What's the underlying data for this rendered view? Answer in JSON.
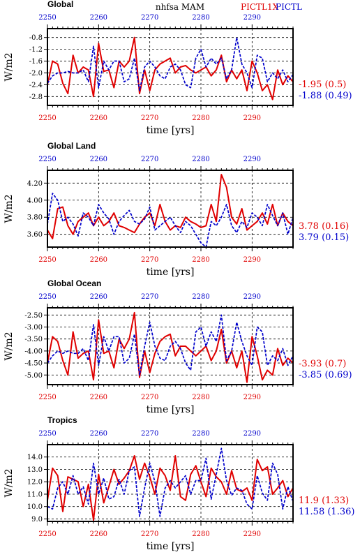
{
  "header": {
    "title": "nhfsa  MAM",
    "exp_label": "PICTL1X",
    "ctl_label": "PICTL"
  },
  "colors": {
    "exp": "#e00000",
    "ctl": "#0000cc"
  },
  "chart_data": [
    {
      "type": "line",
      "title": "Global",
      "xlabel": "time [yrs]",
      "ylabel": "W/m2",
      "xlim": [
        2250,
        2298
      ],
      "ylim": [
        -3.1,
        -0.5
      ],
      "yticks": [
        "-0.8",
        "-1.2",
        "-1.6",
        "-2.0",
        "-2.4",
        "-2.8"
      ],
      "xticks_top": [
        "2250",
        "2260",
        "2270",
        "2280",
        "2290"
      ],
      "xticks_bottom": [
        "2250",
        "2260",
        "2270",
        "2280",
        "2290"
      ],
      "series": [
        {
          "name": "PICTL1X",
          "color": "exp",
          "x_start": 2250,
          "stat": "-1.95 (0.5)",
          "values": [
            -2.4,
            -1.6,
            -1.7,
            -2.35,
            -2.7,
            -1.4,
            -2.0,
            -1.8,
            -1.9,
            -2.8,
            -1.0,
            -1.95,
            -1.9,
            -2.5,
            -1.6,
            -1.8,
            -1.6,
            -0.8,
            -2.7,
            -1.9,
            -2.6,
            -1.9,
            -1.7,
            -1.6,
            -1.5,
            -2.0,
            -1.8,
            -1.75,
            -1.9,
            -2.0,
            -1.9,
            -1.8,
            -2.1,
            -1.9,
            -1.4,
            -2.3,
            -1.9,
            -2.2,
            -1.9,
            -2.6,
            -1.6,
            -2.0,
            -2.6,
            -2.4,
            -2.9,
            -1.9,
            -2.4,
            -2.1,
            -2.3
          ]
        },
        {
          "name": "PICTL",
          "color": "ctl",
          "x_start": 2250,
          "stat": "-1.88 (0.49)",
          "values": [
            -2.35,
            -2.1,
            -2.0,
            -2.0,
            -1.95,
            -2.0,
            -2.0,
            -1.9,
            -2.3,
            -1.1,
            -2.5,
            -1.6,
            -1.9,
            -1.6,
            -1.6,
            -2.3,
            -2.2,
            -1.5,
            -2.6,
            -1.8,
            -1.6,
            -1.8,
            -2.1,
            -2.2,
            -1.8,
            -1.7,
            -1.9,
            -2.4,
            -2.5,
            -1.5,
            -1.2,
            -1.8,
            -1.5,
            -1.7,
            -1.5,
            -2.2,
            -1.9,
            -0.8,
            -1.7,
            -2.0,
            -2.5,
            -1.4,
            -1.5,
            -2.3,
            -2.0,
            -2.2,
            -1.9,
            -2.3,
            -2.05
          ]
        }
      ]
    },
    {
      "type": "line",
      "title": "Global Land",
      "xlabel": "time [yrs]",
      "ylabel": "W/m2",
      "xlim": [
        2250,
        2298
      ],
      "ylim": [
        3.45,
        4.35
      ],
      "yticks": [
        "4.20",
        "4.00",
        "3.80",
        "3.60"
      ],
      "xticks_top": [
        "2250",
        "2260",
        "2270",
        "2280",
        "2290"
      ],
      "xticks_bottom": [
        "2250",
        "2260",
        "2270",
        "2280",
        "2290"
      ],
      "series": [
        {
          "name": "PICTL1X",
          "color": "exp",
          "x_start": 2250,
          "stat": "3.78 (0.16)",
          "values": [
            3.65,
            3.55,
            3.9,
            3.92,
            3.7,
            3.6,
            3.75,
            3.8,
            3.85,
            3.7,
            3.8,
            3.7,
            3.75,
            3.85,
            3.7,
            3.68,
            3.65,
            3.62,
            3.72,
            3.8,
            3.85,
            3.7,
            3.95,
            3.75,
            3.65,
            3.7,
            3.68,
            3.8,
            3.75,
            3.72,
            3.68,
            3.7,
            3.95,
            3.75,
            4.3,
            4.15,
            3.8,
            3.72,
            3.9,
            3.65,
            3.7,
            3.75,
            3.85,
            3.72,
            3.95,
            3.7,
            3.85,
            3.75,
            3.7
          ]
        },
        {
          "name": "PICTL",
          "color": "ctl",
          "x_start": 2250,
          "stat": "3.79 (0.15)",
          "values": [
            3.72,
            4.08,
            4.0,
            3.75,
            3.8,
            3.72,
            3.58,
            3.85,
            3.8,
            3.7,
            3.95,
            3.85,
            3.78,
            3.6,
            3.75,
            3.82,
            3.88,
            3.75,
            3.72,
            3.78,
            3.92,
            3.65,
            3.7,
            3.75,
            3.8,
            3.7,
            3.62,
            3.75,
            3.7,
            3.6,
            3.5,
            3.45,
            3.75,
            3.7,
            3.8,
            3.95,
            3.7,
            3.62,
            3.75,
            3.68,
            3.85,
            3.8,
            3.7,
            3.95,
            3.82,
            3.7,
            3.85,
            3.6,
            3.8
          ]
        }
      ]
    },
    {
      "type": "line",
      "title": "Global Ocean",
      "xlabel": "time [yrs]",
      "ylabel": "W/m2",
      "xlim": [
        2250,
        2298
      ],
      "ylim": [
        -5.4,
        -2.2
      ],
      "yticks": [
        "-2.50",
        "-3.00",
        "-3.50",
        "-4.00",
        "-4.50",
        "-5.00"
      ],
      "xticks_top": [
        "2250",
        "2260",
        "2270",
        "2280",
        "2290"
      ],
      "xticks_bottom": [
        "2250",
        "2260",
        "2270",
        "2280",
        "2290"
      ],
      "series": [
        {
          "name": "PICTL1X",
          "color": "exp",
          "x_start": 2250,
          "stat": "-3.93 (0.7)",
          "values": [
            -4.5,
            -3.4,
            -3.6,
            -4.4,
            -5.0,
            -3.2,
            -4.3,
            -4.1,
            -4.0,
            -5.2,
            -2.7,
            -4.1,
            -4.0,
            -4.7,
            -3.5,
            -3.9,
            -3.5,
            -2.4,
            -5.1,
            -4.0,
            -4.9,
            -4.1,
            -3.6,
            -3.4,
            -3.3,
            -4.2,
            -3.8,
            -3.8,
            -4.0,
            -4.2,
            -4.0,
            -3.8,
            -4.4,
            -4.0,
            -3.1,
            -4.5,
            -4.0,
            -4.7,
            -4.0,
            -5.3,
            -3.4,
            -4.2,
            -5.2,
            -4.8,
            -5.0,
            -3.9,
            -4.6,
            -4.3,
            -4.5
          ]
        },
        {
          "name": "PICTL",
          "color": "ctl",
          "x_start": 2250,
          "stat": "-3.85 (0.69)",
          "values": [
            -4.5,
            -4.2,
            -4.0,
            -4.1,
            -4.0,
            -4.1,
            -4.1,
            -3.9,
            -4.4,
            -2.9,
            -4.6,
            -3.4,
            -4.0,
            -3.4,
            -3.4,
            -4.5,
            -4.3,
            -3.3,
            -5.0,
            -3.8,
            -2.8,
            -3.8,
            -4.3,
            -4.4,
            -3.8,
            -3.6,
            -3.9,
            -4.5,
            -4.8,
            -3.2,
            -3.0,
            -3.8,
            -3.2,
            -3.6,
            -2.5,
            -4.4,
            -4.0,
            -2.8,
            -3.6,
            -4.2,
            -4.6,
            -3.0,
            -3.2,
            -4.6,
            -4.2,
            -4.4,
            -3.9,
            -4.6,
            -4.2
          ]
        }
      ]
    },
    {
      "type": "line",
      "title": "Tropics",
      "xlabel": "time [yrs]",
      "ylabel": "W/m2",
      "xlim": [
        2250,
        2298
      ],
      "ylim": [
        8.8,
        15.0
      ],
      "yticks": [
        "14.0",
        "13.0",
        "12.0",
        "11.0",
        "10.0",
        "9.0"
      ],
      "xticks_top": [
        "2250",
        "2260",
        "2270",
        "2280",
        "2290"
      ],
      "xticks_bottom": [
        "2250",
        "2260",
        "2270",
        "2280",
        "2290"
      ],
      "series": [
        {
          "name": "PICTL1X",
          "color": "exp",
          "x_start": 2250,
          "stat": "11.9 (1.33)",
          "values": [
            10.5,
            13.1,
            12.5,
            9.6,
            12.4,
            12.2,
            12.0,
            10.0,
            11.8,
            8.9,
            12.6,
            10.3,
            11.6,
            13.0,
            11.8,
            12.3,
            12.9,
            14.1,
            12.2,
            13.5,
            12.4,
            11.0,
            13.1,
            12.5,
            11.3,
            14.1,
            10.8,
            10.5,
            12.6,
            13.3,
            12.0,
            10.8,
            13.1,
            12.4,
            12.0,
            11.0,
            12.9,
            11.4,
            11.2,
            11.5,
            10.5,
            13.8,
            12.9,
            13.2,
            11.0,
            11.5,
            12.1,
            10.8,
            11.5
          ]
        },
        {
          "name": "PICTL",
          "color": "ctl",
          "x_start": 2250,
          "stat": "11.58 (1.36)",
          "values": [
            10.0,
            9.8,
            11.5,
            12.0,
            11.0,
            12.5,
            11.0,
            11.6,
            10.2,
            13.5,
            11.0,
            12.3,
            10.6,
            10.8,
            12.2,
            11.0,
            12.9,
            13.2,
            9.2,
            11.5,
            13.5,
            12.0,
            9.2,
            11.5,
            12.1,
            11.5,
            12.0,
            12.5,
            11.0,
            12.1,
            12.1,
            13.9,
            10.6,
            12.6,
            14.7,
            12.1,
            10.9,
            11.5,
            11.3,
            10.2,
            9.8,
            12.5,
            11.1,
            10.5,
            13.5,
            12.6,
            9.8,
            11.6,
            10.4
          ]
        }
      ]
    }
  ]
}
